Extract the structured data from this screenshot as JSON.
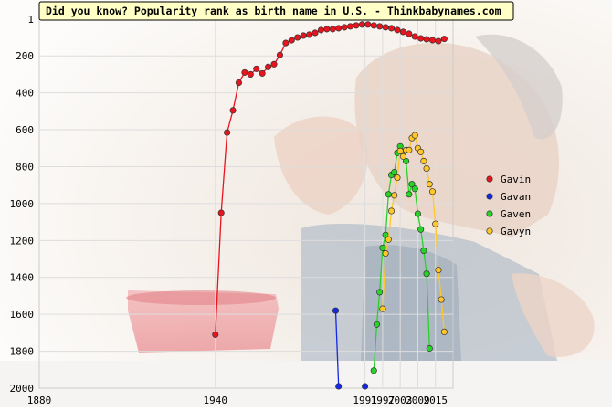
{
  "chart_data": {
    "type": "line",
    "title": "Did you know? Popularity rank as birth name in U.S. - Thinkbabynames.com",
    "xlabel": "",
    "ylabel": "",
    "xlim": [
      1880,
      2021
    ],
    "ylim": [
      2000,
      1
    ],
    "y_inverted": true,
    "x_ticks": [
      1880,
      1940,
      1991,
      1997,
      2003,
      2009,
      2015
    ],
    "y_ticks": [
      1,
      200,
      400,
      600,
      800,
      1000,
      1200,
      1400,
      1600,
      1800,
      2000
    ],
    "grid": true,
    "legend_position": "right",
    "series": [
      {
        "name": "Gavin",
        "color": "#e8141e",
        "x": [
          1940,
          1942,
          1944,
          1946,
          1948,
          1950,
          1952,
          1954,
          1956,
          1958,
          1960,
          1962,
          1964,
          1966,
          1968,
          1970,
          1972,
          1974,
          1976,
          1978,
          1980,
          1982,
          1984,
          1986,
          1988,
          1990,
          1992,
          1994,
          1996,
          1998,
          2000,
          2002,
          2004,
          2006,
          2008,
          2010,
          2012,
          2014,
          2016,
          2018
        ],
        "y": [
          1710,
          1050,
          615,
          495,
          345,
          290,
          300,
          270,
          295,
          260,
          245,
          195,
          130,
          115,
          100,
          90,
          85,
          75,
          60,
          55,
          55,
          50,
          45,
          40,
          35,
          30,
          30,
          35,
          40,
          45,
          50,
          60,
          70,
          80,
          95,
          105,
          110,
          115,
          120,
          108
        ]
      },
      {
        "name": "Gavan",
        "color": "#1428e8",
        "x": [
          1981,
          1982,
          1983,
          1984,
          1985,
          1986,
          1987,
          1988,
          1989,
          1990,
          1991,
          1992,
          1993,
          1994,
          1995,
          1996,
          1997,
          1998,
          1999,
          2000,
          2001,
          2002,
          2003,
          2004,
          2005,
          2006,
          2007,
          2008,
          2009,
          2010
        ],
        "y": [
          1580,
          1990,
          null,
          null,
          null,
          null,
          null,
          null,
          null,
          null,
          1990,
          null,
          null,
          null,
          null,
          null,
          null,
          null,
          null,
          null,
          null,
          null,
          null,
          null,
          null,
          null,
          null,
          null,
          null,
          null
        ]
      },
      {
        "name": "Gaven",
        "color": "#28d228",
        "x": [
          1994,
          1995,
          1996,
          1997,
          1998,
          1999,
          2000,
          2001,
          2002,
          2003,
          2004,
          2005,
          2006,
          2007,
          2008,
          2009,
          2010,
          2011,
          2012,
          2013
        ],
        "y": [
          1905,
          1655,
          1480,
          1240,
          1170,
          950,
          845,
          830,
          725,
          690,
          720,
          770,
          950,
          895,
          920,
          1055,
          1140,
          1255,
          1380,
          1785
        ]
      },
      {
        "name": "Gavyn",
        "color": "#ffc828",
        "x": [
          1997,
          1998,
          1999,
          2000,
          2001,
          2002,
          2003,
          2004,
          2005,
          2006,
          2007,
          2008,
          2009,
          2010,
          2011,
          2012,
          2013,
          2014,
          2015,
          2016,
          2017,
          2018
        ],
        "y": [
          1570,
          1270,
          1195,
          1040,
          955,
          860,
          715,
          745,
          710,
          710,
          645,
          630,
          700,
          720,
          770,
          810,
          895,
          935,
          1110,
          1360,
          1520,
          1695
        ]
      }
    ]
  }
}
